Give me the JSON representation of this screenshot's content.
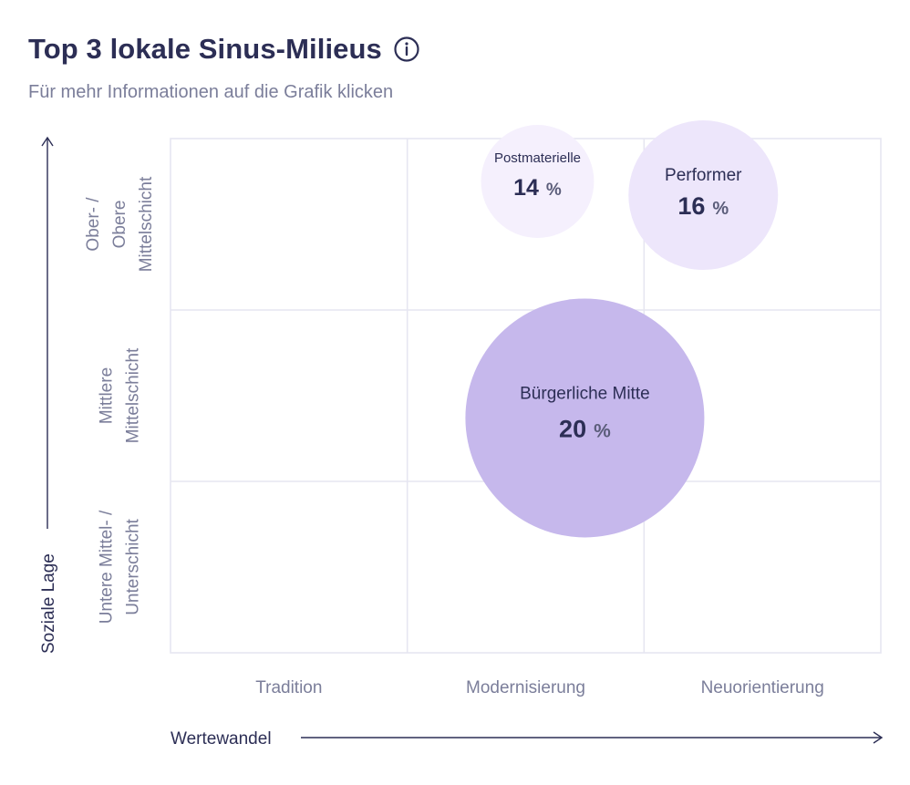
{
  "header": {
    "title": "Top 3 lokale Sinus-Milieus",
    "subtitle": "Für mehr Informationen auf die Grafik klicken"
  },
  "chart_data": {
    "type": "scatter",
    "subtype": "bubble",
    "x_categories": [
      "Tradition",
      "Modernisierung",
      "Neuorientierung"
    ],
    "y_categories": [
      [
        "Untere Mittel- /",
        "Unterschicht"
      ],
      [
        "Mittlere",
        "Mittelschicht"
      ],
      [
        "Ober- /",
        "Obere",
        "Mittelschicht"
      ]
    ],
    "xlabel": "Wertewandel",
    "ylabel": "Soziale Lage",
    "xlim": [
      0,
      3
    ],
    "ylim": [
      0,
      3
    ],
    "grid": true,
    "series": [
      {
        "name": "Postmaterielle",
        "value": 14,
        "unit": "%",
        "x": 1.55,
        "y": 2.75,
        "color": "#f5f0fd",
        "text_size": "small"
      },
      {
        "name": "Performer",
        "value": 16,
        "unit": "%",
        "x": 2.25,
        "y": 2.67,
        "color": "#ede6fb",
        "text_size": "medium"
      },
      {
        "name": "Bürgerliche Mitte",
        "value": 20,
        "unit": "%",
        "x": 1.75,
        "y": 1.37,
        "color": "#c6b8ec",
        "text_size": "large"
      }
    ]
  },
  "colors": {
    "grid": "#e6e6f1",
    "axis": "#2c2e55",
    "bubble_text": "#2c2e55"
  }
}
